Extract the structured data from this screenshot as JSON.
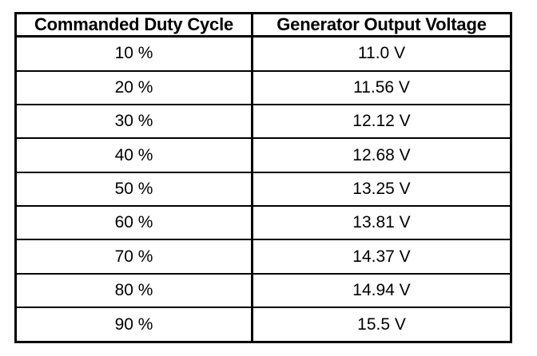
{
  "table": {
    "headers": [
      "Commanded Duty Cycle",
      "Generator Output Voltage"
    ],
    "rows": [
      [
        "10 %",
        "11.0 V"
      ],
      [
        "20 %",
        "11.56 V"
      ],
      [
        "30 %",
        "12.12 V"
      ],
      [
        "40 %",
        "12.68 V"
      ],
      [
        "50 %",
        "13.25 V"
      ],
      [
        "60 %",
        "13.81 V"
      ],
      [
        "70 %",
        "14.37 V"
      ],
      [
        "80 %",
        "14.94 V"
      ],
      [
        "90 %",
        "15.5 V"
      ]
    ]
  }
}
